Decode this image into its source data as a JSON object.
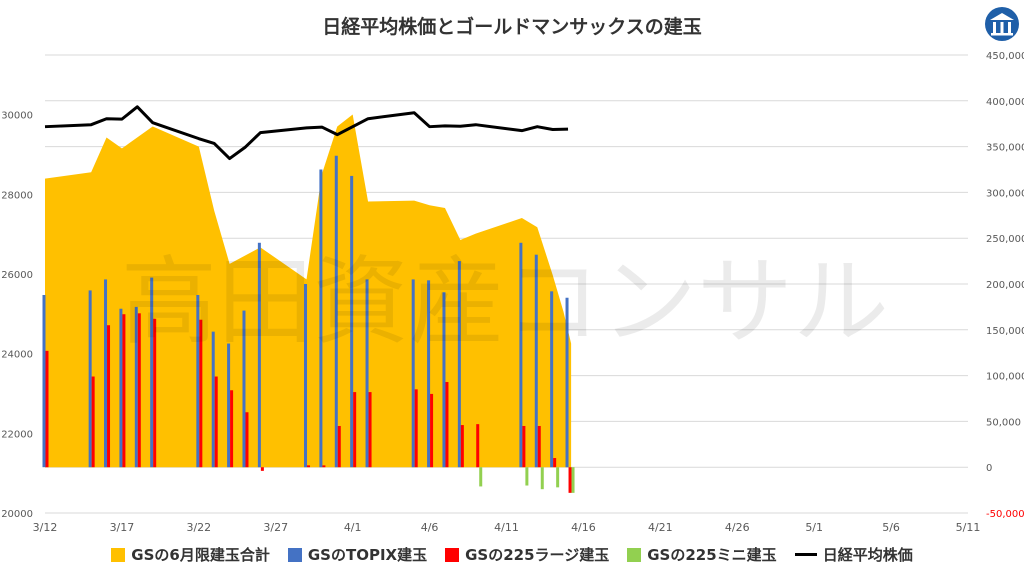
{
  "chart_data": {
    "type": "bar",
    "title": "日経平均株価とゴールドマンサックスの建玉",
    "watermark": "高田資産コンサル",
    "x_tick_labels": [
      "3/12",
      "3/17",
      "3/22",
      "3/27",
      "4/1",
      "4/6",
      "4/11",
      "4/16",
      "4/21",
      "4/26",
      "5/1",
      "5/6",
      "5/11"
    ],
    "x_range_days": [
      0,
      60
    ],
    "y_left": {
      "ticks": [
        "20000",
        "22000",
        "24000",
        "26000",
        "28000",
        "30000"
      ],
      "range": [
        20000,
        31500
      ]
    },
    "y_right": {
      "ticks": [
        "-50,000",
        "0",
        "50,000",
        "100,000",
        "150,000",
        "200,000",
        "250,000",
        "300,000",
        "350,000",
        "400,000",
        "450,000"
      ],
      "range": [
        -50000,
        450000
      ]
    },
    "series": [
      {
        "name": "GSの6月限建玉合計",
        "kind": "area",
        "axis": "right",
        "color": "#FFC000",
        "points": [
          [
            0,
            315000
          ],
          [
            3,
            322000
          ],
          [
            4,
            360000
          ],
          [
            5,
            348000
          ],
          [
            7,
            372000
          ],
          [
            10,
            350000
          ],
          [
            11,
            280000
          ],
          [
            12,
            222000
          ],
          [
            14,
            240000
          ],
          [
            17,
            205000
          ],
          [
            18,
            320000
          ],
          [
            19,
            372000
          ],
          [
            20,
            385000
          ],
          [
            21,
            290000
          ],
          [
            24,
            291000
          ],
          [
            25,
            286000
          ],
          [
            26,
            283000
          ],
          [
            27,
            248000
          ],
          [
            28,
            255000
          ],
          [
            31,
            272000
          ],
          [
            32,
            262000
          ],
          [
            33,
            210000
          ],
          [
            33.7,
            170000
          ],
          [
            34.2,
            135000
          ]
        ]
      },
      {
        "name": "GSのTOPIX建玉",
        "kind": "bar",
        "axis": "right",
        "color": "#4472C4",
        "points": [
          [
            0,
            188000
          ],
          [
            3,
            193000
          ],
          [
            4,
            205000
          ],
          [
            5,
            173000
          ],
          [
            6,
            175000
          ],
          [
            7,
            207000
          ],
          [
            10,
            188000
          ],
          [
            11,
            148000
          ],
          [
            12,
            135000
          ],
          [
            13,
            171000
          ],
          [
            14,
            245000
          ],
          [
            17,
            200000
          ],
          [
            18,
            325000
          ],
          [
            19,
            340000
          ],
          [
            20,
            318000
          ],
          [
            21,
            205000
          ],
          [
            24,
            205000
          ],
          [
            25,
            204000
          ],
          [
            26,
            191000
          ],
          [
            27,
            225000
          ],
          [
            31,
            245000
          ],
          [
            32,
            232000
          ],
          [
            33,
            192000
          ],
          [
            34,
            185000
          ]
        ]
      },
      {
        "name": "GSの225ラージ建玉",
        "kind": "bar",
        "axis": "right",
        "color": "#FF0000",
        "points": [
          [
            0,
            127000
          ],
          [
            3,
            99000
          ],
          [
            4,
            155000
          ],
          [
            5,
            167000
          ],
          [
            6,
            168000
          ],
          [
            7,
            162000
          ],
          [
            10,
            161000
          ],
          [
            11,
            99000
          ],
          [
            12,
            84000
          ],
          [
            13,
            60000
          ],
          [
            14,
            -4000
          ],
          [
            17,
            2000
          ],
          [
            18,
            2000
          ],
          [
            19,
            45000
          ],
          [
            20,
            82000
          ],
          [
            21,
            82000
          ],
          [
            24,
            85000
          ],
          [
            25,
            80000
          ],
          [
            26,
            93000
          ],
          [
            27,
            46000
          ],
          [
            28,
            47000
          ],
          [
            31,
            45000
          ],
          [
            32,
            45000
          ],
          [
            33,
            10000
          ],
          [
            34,
            -28000
          ]
        ]
      },
      {
        "name": "GSの225ミニ建玉",
        "kind": "bar",
        "axis": "right",
        "color": "#92D050",
        "points": [
          [
            28,
            -21000
          ],
          [
            31,
            -20000
          ],
          [
            32,
            -24000
          ],
          [
            33,
            -22000
          ],
          [
            34,
            -28000
          ]
        ]
      },
      {
        "name": "日経平均株価",
        "kind": "line",
        "axis": "left",
        "color": "#000000",
        "points": [
          [
            0,
            29700
          ],
          [
            3,
            29750
          ],
          [
            4,
            29900
          ],
          [
            5,
            29890
          ],
          [
            6,
            30200
          ],
          [
            7,
            29800
          ],
          [
            10,
            29400
          ],
          [
            11,
            29280
          ],
          [
            12,
            28900
          ],
          [
            13,
            29180
          ],
          [
            14,
            29550
          ],
          [
            17,
            29670
          ],
          [
            18,
            29690
          ],
          [
            19,
            29500
          ],
          [
            20,
            29700
          ],
          [
            21,
            29900
          ],
          [
            24,
            30050
          ],
          [
            25,
            29700
          ],
          [
            26,
            29720
          ],
          [
            27,
            29710
          ],
          [
            28,
            29750
          ],
          [
            31,
            29600
          ],
          [
            32,
            29700
          ],
          [
            33,
            29630
          ],
          [
            34,
            29640
          ]
        ]
      }
    ]
  }
}
